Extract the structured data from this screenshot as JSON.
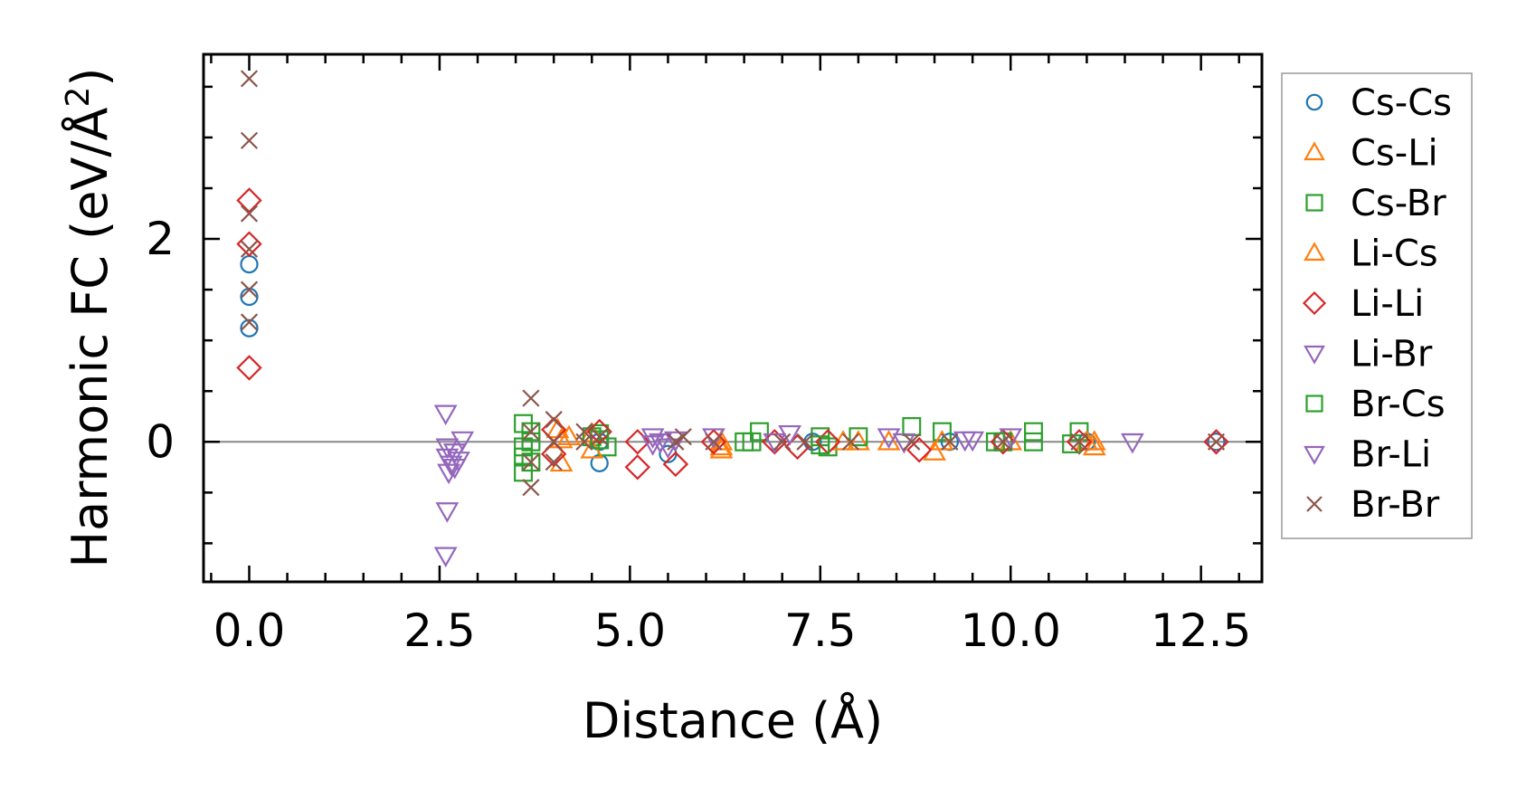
{
  "chart_data": {
    "type": "scatter",
    "title": "",
    "xlabel": "Distance (Å)",
    "ylabel_main": "Harmonic FC (eV/Å",
    "ylabel_sup": "2",
    "ylabel_close": ")",
    "xlim": [
      -0.6,
      13.3
    ],
    "ylim": [
      -1.38,
      3.82
    ],
    "x_ticks": [
      0.0,
      2.5,
      5.0,
      7.5,
      10.0,
      12.5
    ],
    "x_tick_labels": [
      "0.0",
      "2.5",
      "5.0",
      "7.5",
      "10.0",
      "12.5"
    ],
    "y_ticks": [
      0,
      2
    ],
    "y_tick_labels": [
      "0",
      "2"
    ],
    "zero_line": true,
    "grid": false,
    "legend_position": "right-outside",
    "series": [
      {
        "name": "Cs-Cs",
        "marker": "circle",
        "color": "#1f77b4",
        "points": [
          [
            0,
            1.75
          ],
          [
            0,
            1.43
          ],
          [
            0,
            1.12
          ],
          [
            4.6,
            -0.21
          ],
          [
            4.6,
            0.0
          ],
          [
            5.5,
            -0.12
          ],
          [
            7.4,
            0.0
          ],
          [
            9.2,
            0.0
          ],
          [
            11.0,
            0.0
          ],
          [
            12.7,
            0.0
          ]
        ]
      },
      {
        "name": "Cs-Li",
        "marker": "triangle-up",
        "color": "#ff7f0e",
        "points": [
          [
            4.1,
            0.02
          ],
          [
            4.1,
            -0.21
          ],
          [
            4.2,
            0.05
          ],
          [
            4.5,
            0.08
          ],
          [
            6.2,
            0.0
          ],
          [
            6.2,
            -0.08
          ],
          [
            8.0,
            0.0
          ],
          [
            8.4,
            0.0
          ],
          [
            9.0,
            -0.1
          ],
          [
            10.0,
            0.0
          ],
          [
            11.1,
            -0.05
          ],
          [
            11.1,
            0.0
          ]
        ]
      },
      {
        "name": "Cs-Br",
        "marker": "square",
        "color": "#2ca02c",
        "points": [
          [
            3.6,
            0.18
          ],
          [
            3.6,
            -0.05
          ],
          [
            3.6,
            -0.15
          ],
          [
            3.6,
            -0.3
          ],
          [
            3.7,
            0.1
          ],
          [
            3.7,
            -0.2
          ],
          [
            4.5,
            0.05
          ],
          [
            4.6,
            0.08
          ],
          [
            4.7,
            -0.05
          ],
          [
            6.6,
            0.0
          ],
          [
            6.7,
            0.1
          ],
          [
            7.5,
            0.05
          ],
          [
            7.6,
            -0.05
          ],
          [
            8.0,
            0.05
          ],
          [
            8.7,
            0.15
          ],
          [
            9.1,
            0.1
          ],
          [
            9.9,
            0.0
          ],
          [
            10.3,
            0.1
          ],
          [
            10.3,
            0.0
          ],
          [
            10.9,
            0.1
          ]
        ]
      },
      {
        "name": "Li-Cs",
        "marker": "triangle-up",
        "color": "#ff7f0e",
        "points": [
          [
            4.05,
            0.12
          ],
          [
            4.5,
            -0.08
          ],
          [
            6.2,
            -0.05
          ],
          [
            7.8,
            0.0
          ],
          [
            9.1,
            0.0
          ],
          [
            11.0,
            0.0
          ]
        ]
      },
      {
        "name": "Li-Li",
        "marker": "diamond",
        "color": "#d62728",
        "points": [
          [
            0,
            2.38
          ],
          [
            0,
            1.95
          ],
          [
            0,
            0.73
          ],
          [
            4.0,
            0.12
          ],
          [
            4.0,
            -0.12
          ],
          [
            4.6,
            0.1
          ],
          [
            5.1,
            0.0
          ],
          [
            5.1,
            -0.25
          ],
          [
            5.6,
            -0.22
          ],
          [
            6.1,
            0.0
          ],
          [
            6.9,
            0.0
          ],
          [
            7.2,
            -0.05
          ],
          [
            7.6,
            0.0
          ],
          [
            8.8,
            -0.08
          ],
          [
            9.9,
            0.0
          ],
          [
            10.9,
            0.0
          ],
          [
            12.7,
            0.0
          ]
        ]
      },
      {
        "name": "Li-Br",
        "marker": "triangle-down",
        "color": "#9467bd",
        "points": [
          [
            2.58,
            0.28
          ],
          [
            2.6,
            -0.15
          ],
          [
            2.62,
            -0.3
          ],
          [
            2.65,
            -0.22
          ],
          [
            2.7,
            -0.1
          ],
          [
            2.75,
            -0.18
          ],
          [
            2.6,
            -0.68
          ],
          [
            2.58,
            -1.12
          ],
          [
            2.8,
            0.02
          ],
          [
            5.3,
            0.05
          ],
          [
            5.4,
            0.0
          ],
          [
            5.5,
            -0.05
          ],
          [
            6.1,
            0.05
          ],
          [
            7.1,
            0.08
          ],
          [
            8.4,
            0.05
          ],
          [
            9.4,
            0.02
          ],
          [
            10.0,
            0.05
          ],
          [
            11.6,
            0.0
          ]
        ]
      },
      {
        "name": "Br-Cs",
        "marker": "square",
        "color": "#2ca02c",
        "points": [
          [
            3.7,
            0.0
          ],
          [
            4.6,
            0.02
          ],
          [
            6.5,
            0.0
          ],
          [
            7.5,
            -0.03
          ],
          [
            9.8,
            0.0
          ],
          [
            10.8,
            -0.02
          ]
        ]
      },
      {
        "name": "Br-Li",
        "marker": "triangle-down",
        "color": "#9467bd",
        "points": [
          [
            2.6,
            -0.05
          ],
          [
            2.7,
            -0.25
          ],
          [
            5.3,
            -0.02
          ],
          [
            5.6,
            0.02
          ],
          [
            6.9,
            0.0
          ],
          [
            8.6,
            0.0
          ],
          [
            9.5,
            0.02
          ]
        ]
      },
      {
        "name": "Br-Br",
        "marker": "x",
        "color": "#8c564b",
        "points": [
          [
            0,
            3.58
          ],
          [
            0,
            2.97
          ],
          [
            0,
            2.25
          ],
          [
            0,
            1.9
          ],
          [
            0,
            1.5
          ],
          [
            0,
            1.18
          ],
          [
            3.7,
            0.43
          ],
          [
            3.7,
            0.1
          ],
          [
            3.7,
            -0.2
          ],
          [
            3.7,
            -0.45
          ],
          [
            4.0,
            0.22
          ],
          [
            4.0,
            0.0
          ],
          [
            4.0,
            -0.2
          ],
          [
            4.4,
            0.1
          ],
          [
            4.4,
            0.0
          ],
          [
            4.6,
            0.05
          ],
          [
            5.6,
            0.0
          ],
          [
            5.7,
            0.05
          ],
          [
            6.1,
            0.0
          ],
          [
            7.0,
            0.0
          ],
          [
            7.3,
            0.0
          ],
          [
            7.9,
            0.0
          ],
          [
            8.7,
            0.0
          ],
          [
            9.2,
            0.0
          ],
          [
            9.9,
            0.0
          ],
          [
            10.9,
            0.0
          ],
          [
            12.7,
            0.0
          ]
        ]
      }
    ]
  }
}
